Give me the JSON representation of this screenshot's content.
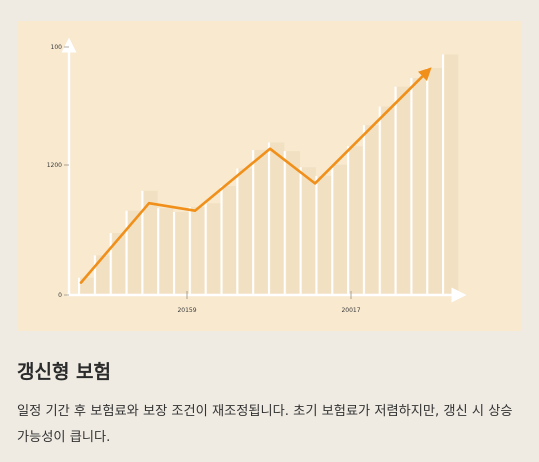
{
  "card": {
    "title": "갱신형 보험",
    "description": "일정 기간 후 보험료와 보장 조건이 재조정됩니다. 초기 보험료가 저렴하지만, 갱신 시 상승 가능성이 큽니다."
  },
  "colors": {
    "page_background": "#efebe3",
    "figure_background": "#f8e9cf",
    "accent_line": "#f0901a",
    "bars": "#ffffff",
    "bar_shadow": "#ecd8b8"
  },
  "chart_data": {
    "type": "line",
    "title": "",
    "xlabel": "",
    "ylabel": "",
    "y_tick_labels": [
      "100",
      "1200",
      "0"
    ],
    "x_tick_labels": [
      "20159",
      "20017"
    ],
    "grid": false,
    "legend": "none",
    "series": [
      {
        "values": [
          10,
          74,
          68,
          118,
          90,
          180
        ]
      }
    ],
    "bars": {
      "count": 24,
      "values": [
        14,
        32,
        50,
        68,
        84,
        70,
        67,
        71,
        74,
        88,
        102,
        117,
        123,
        116,
        103,
        96,
        105,
        120,
        137,
        152,
        168,
        175,
        183,
        194
      ]
    }
  }
}
